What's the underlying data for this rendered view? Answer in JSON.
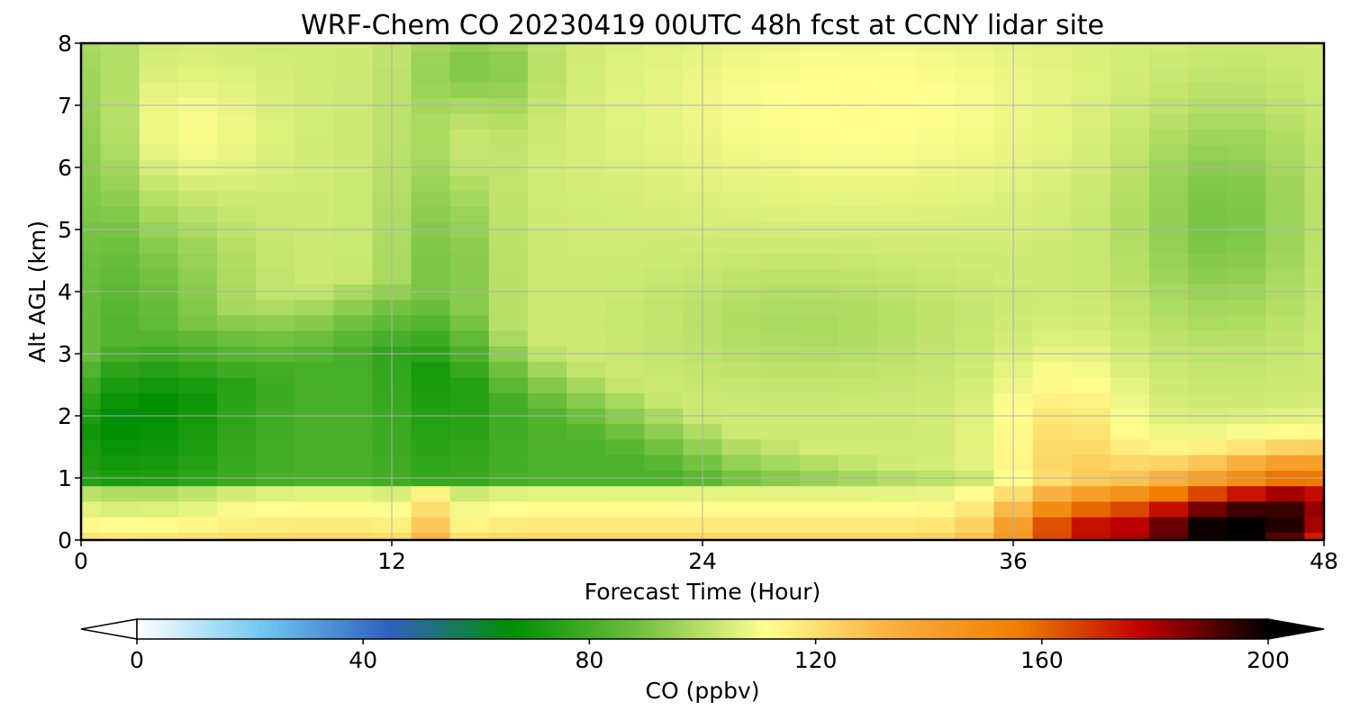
{
  "chart_data": {
    "type": "heatmap",
    "title": "WRF-Chem CO  20230419 00UTC 48h fcst at CCNY lidar site",
    "xlabel": "Forecast Time (Hour)",
    "ylabel": "Alt AGL (km)",
    "xlim": [
      0,
      48
    ],
    "ylim": [
      0,
      8
    ],
    "x_ticks": [
      0,
      12,
      24,
      36,
      48
    ],
    "y_ticks": [
      0,
      1,
      2,
      3,
      4,
      5,
      6,
      7,
      8
    ],
    "grid": true,
    "colorbar": {
      "label": "CO  (ppbv)",
      "range": [
        0,
        200
      ],
      "ticks": [
        0,
        40,
        80,
        120,
        160,
        200
      ],
      "extend": "both",
      "colors": [
        "#ffffff",
        "#6ec8f0",
        "#3060c0",
        "#009000",
        "#70c040",
        "#ffff90",
        "#f8b040",
        "#f08000",
        "#c00000",
        "#000000"
      ]
    },
    "x": [
      0,
      1.5,
      3,
      4.5,
      6,
      7.5,
      9,
      10.5,
      12,
      13.5,
      15,
      16.5,
      18,
      19.5,
      21,
      22.5,
      24,
      25.5,
      27,
      28.5,
      30,
      31.5,
      33,
      34.5,
      36,
      37.5,
      39,
      40.5,
      42,
      43.5,
      45,
      46.5,
      48
    ],
    "y": [
      0,
      0.25,
      0.5,
      0.75,
      1,
      1.25,
      1.5,
      1.75,
      2,
      2.25,
      2.5,
      2.75,
      3,
      3.25,
      3.5,
      3.75,
      4,
      4.25,
      4.5,
      4.75,
      5,
      5.25,
      5.5,
      5.75,
      6,
      6.25,
      6.5,
      6.75,
      7,
      7.25,
      7.5,
      7.75,
      8
    ]
  }
}
